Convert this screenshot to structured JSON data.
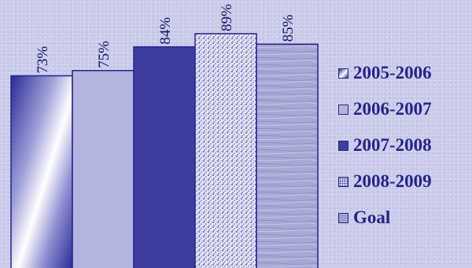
{
  "chart_data": {
    "type": "bar",
    "categories": [
      "2005-2006",
      "2006-2007",
      "2007-2008",
      "2008-2009",
      "Goal"
    ],
    "values": [
      73,
      75,
      84,
      89,
      85
    ],
    "value_labels": [
      "73%",
      "75%",
      "84%",
      "89%",
      "85%"
    ],
    "ylim": [
      0,
      100
    ],
    "grid": false,
    "legend_position": "right"
  },
  "legend": [
    {
      "label": "2005-2006"
    },
    {
      "label": "2006-2007"
    },
    {
      "label": "2007-2008"
    },
    {
      "label": "2008-2009"
    },
    {
      "label": "Goal"
    }
  ],
  "colors": {
    "border": "#23238e",
    "gradient_dark": "#2a2a96",
    "gradient_light": "#ffffff",
    "light_bar": "#b3b5de",
    "dark_bar": "#3d3f9e",
    "speckle_bar": "#dfe0f3",
    "wood_bar": "#a4a7d3",
    "text": "#11116a"
  }
}
